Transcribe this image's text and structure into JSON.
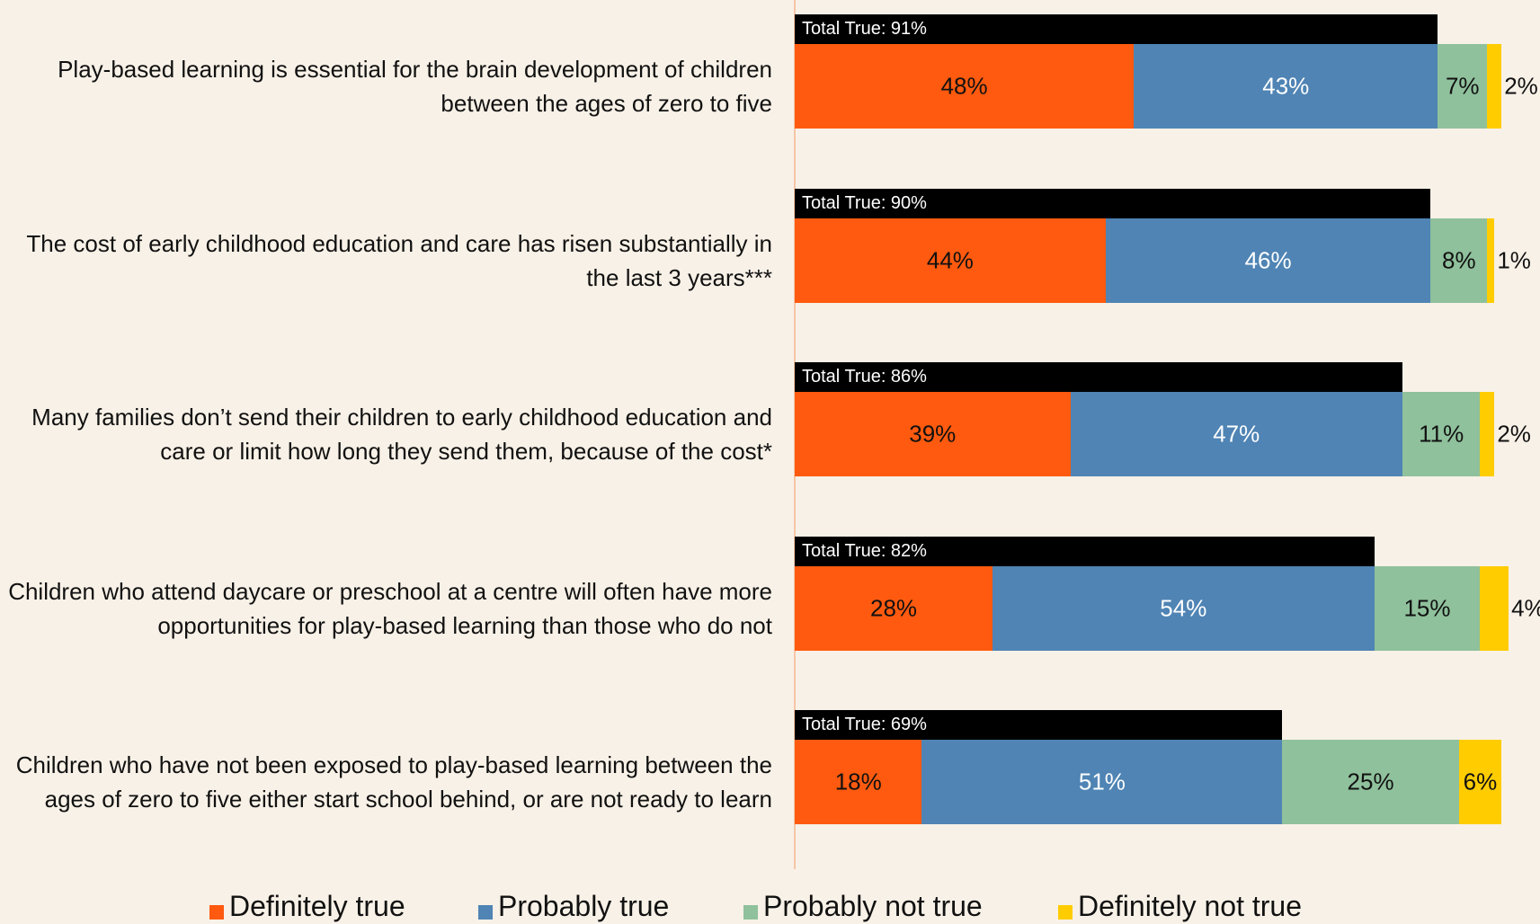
{
  "chart_data": {
    "type": "stacked-bar-horizontal",
    "categories": [
      "Play-based learning is essential for the brain development of children between the ages of zero to five",
      "The cost of early childhood education and care has risen substantially in the last 3 years***",
      "Many families don’t send their children to early childhood education and care or limit how long they send them, because of the cost*",
      "Children who attend daycare or preschool at a centre will often have more opportunities for play-based learning than those who do not",
      "Children who have not been exposed to play-based learning between the ages of zero to five either start school behind, or are not ready to learn"
    ],
    "series": [
      {
        "name": "Definitely true",
        "color": "#ff5a0f",
        "values": [
          48,
          44,
          39,
          28,
          18
        ],
        "value_labels": [
          "48%",
          "44%",
          "39%",
          "28%",
          "18%"
        ]
      },
      {
        "name": "Probably true",
        "color": "#4f84b4",
        "values": [
          43,
          46,
          47,
          54,
          51
        ],
        "value_labels": [
          "43%",
          "46%",
          "47%",
          "54%",
          "51%"
        ]
      },
      {
        "name": "Probably not true",
        "color": "#8fc19c",
        "values": [
          7,
          8,
          11,
          15,
          25
        ],
        "value_labels": [
          "7%",
          "8%",
          "11%",
          "15%",
          "25%"
        ]
      },
      {
        "name": "Definitely not true",
        "color": "#ffcc00",
        "values": [
          2,
          1,
          2,
          4,
          6
        ],
        "value_labels": [
          "2%",
          "1%",
          "2%",
          "4%",
          "6%"
        ]
      }
    ],
    "totals": {
      "color": "#000000",
      "values": [
        91,
        90,
        86,
        82,
        69
      ],
      "value_labels": [
        "Total True: 91%",
        "Total True: 90%",
        "Total True: 86%",
        "Total True: 82%",
        "Total True: 69%"
      ]
    },
    "xlim": [
      0,
      100
    ]
  }
}
